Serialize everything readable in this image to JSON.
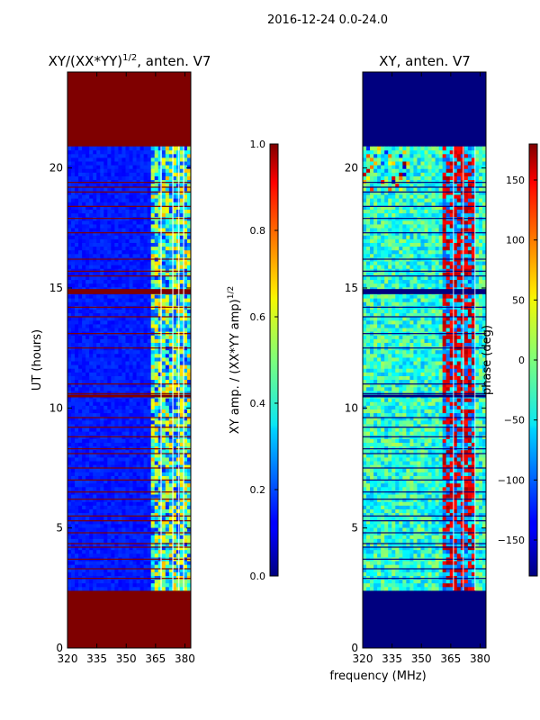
{
  "suptitle": "2016-12-24 0.0-24.0",
  "chart_data": [
    {
      "type": "heatmap",
      "id": "amp",
      "title": "XY/(XX*YY)",
      "title_sup": "1/2",
      "title_suffix": ", anten. V7",
      "xlabel": "",
      "ylabel": "UT (hours)",
      "xlim": [
        320,
        383
      ],
      "ylim": [
        0,
        24
      ],
      "xticks": [
        320,
        335,
        350,
        365,
        380
      ],
      "yticks": [
        0,
        5,
        10,
        15,
        20
      ],
      "data_range_hours": [
        2.4,
        20.9
      ],
      "outside_fill": "#7f0000",
      "colorbar": {
        "label": "XY amp. / (XX*YY amp)",
        "label_sup": "1/2",
        "range": [
          0.0,
          1.0
        ],
        "ticks": [
          "0.0",
          "0.2",
          "0.4",
          "0.6",
          "0.8",
          "1.0"
        ],
        "colormap": "jet"
      }
    },
    {
      "type": "heatmap",
      "id": "phase",
      "title": "XY, anten. V7",
      "xlabel": "frequency (MHz)",
      "ylabel": "",
      "xlim": [
        320,
        383
      ],
      "ylim": [
        0,
        24
      ],
      "xticks": [
        320,
        335,
        350,
        365,
        380
      ],
      "yticks": [
        0,
        5,
        10,
        15,
        20
      ],
      "data_range_hours": [
        2.4,
        20.9
      ],
      "outside_fill": "#00007f",
      "colorbar": {
        "label": "phase (deg)",
        "range": [
          -180,
          180
        ],
        "ticks": [
          "−150",
          "−100",
          "−50",
          "0",
          "50",
          "100",
          "150"
        ],
        "colormap": "jet"
      }
    }
  ],
  "colors": {
    "jet_dark_red": "#7f0000",
    "jet_dark_blue": "#00007f"
  }
}
